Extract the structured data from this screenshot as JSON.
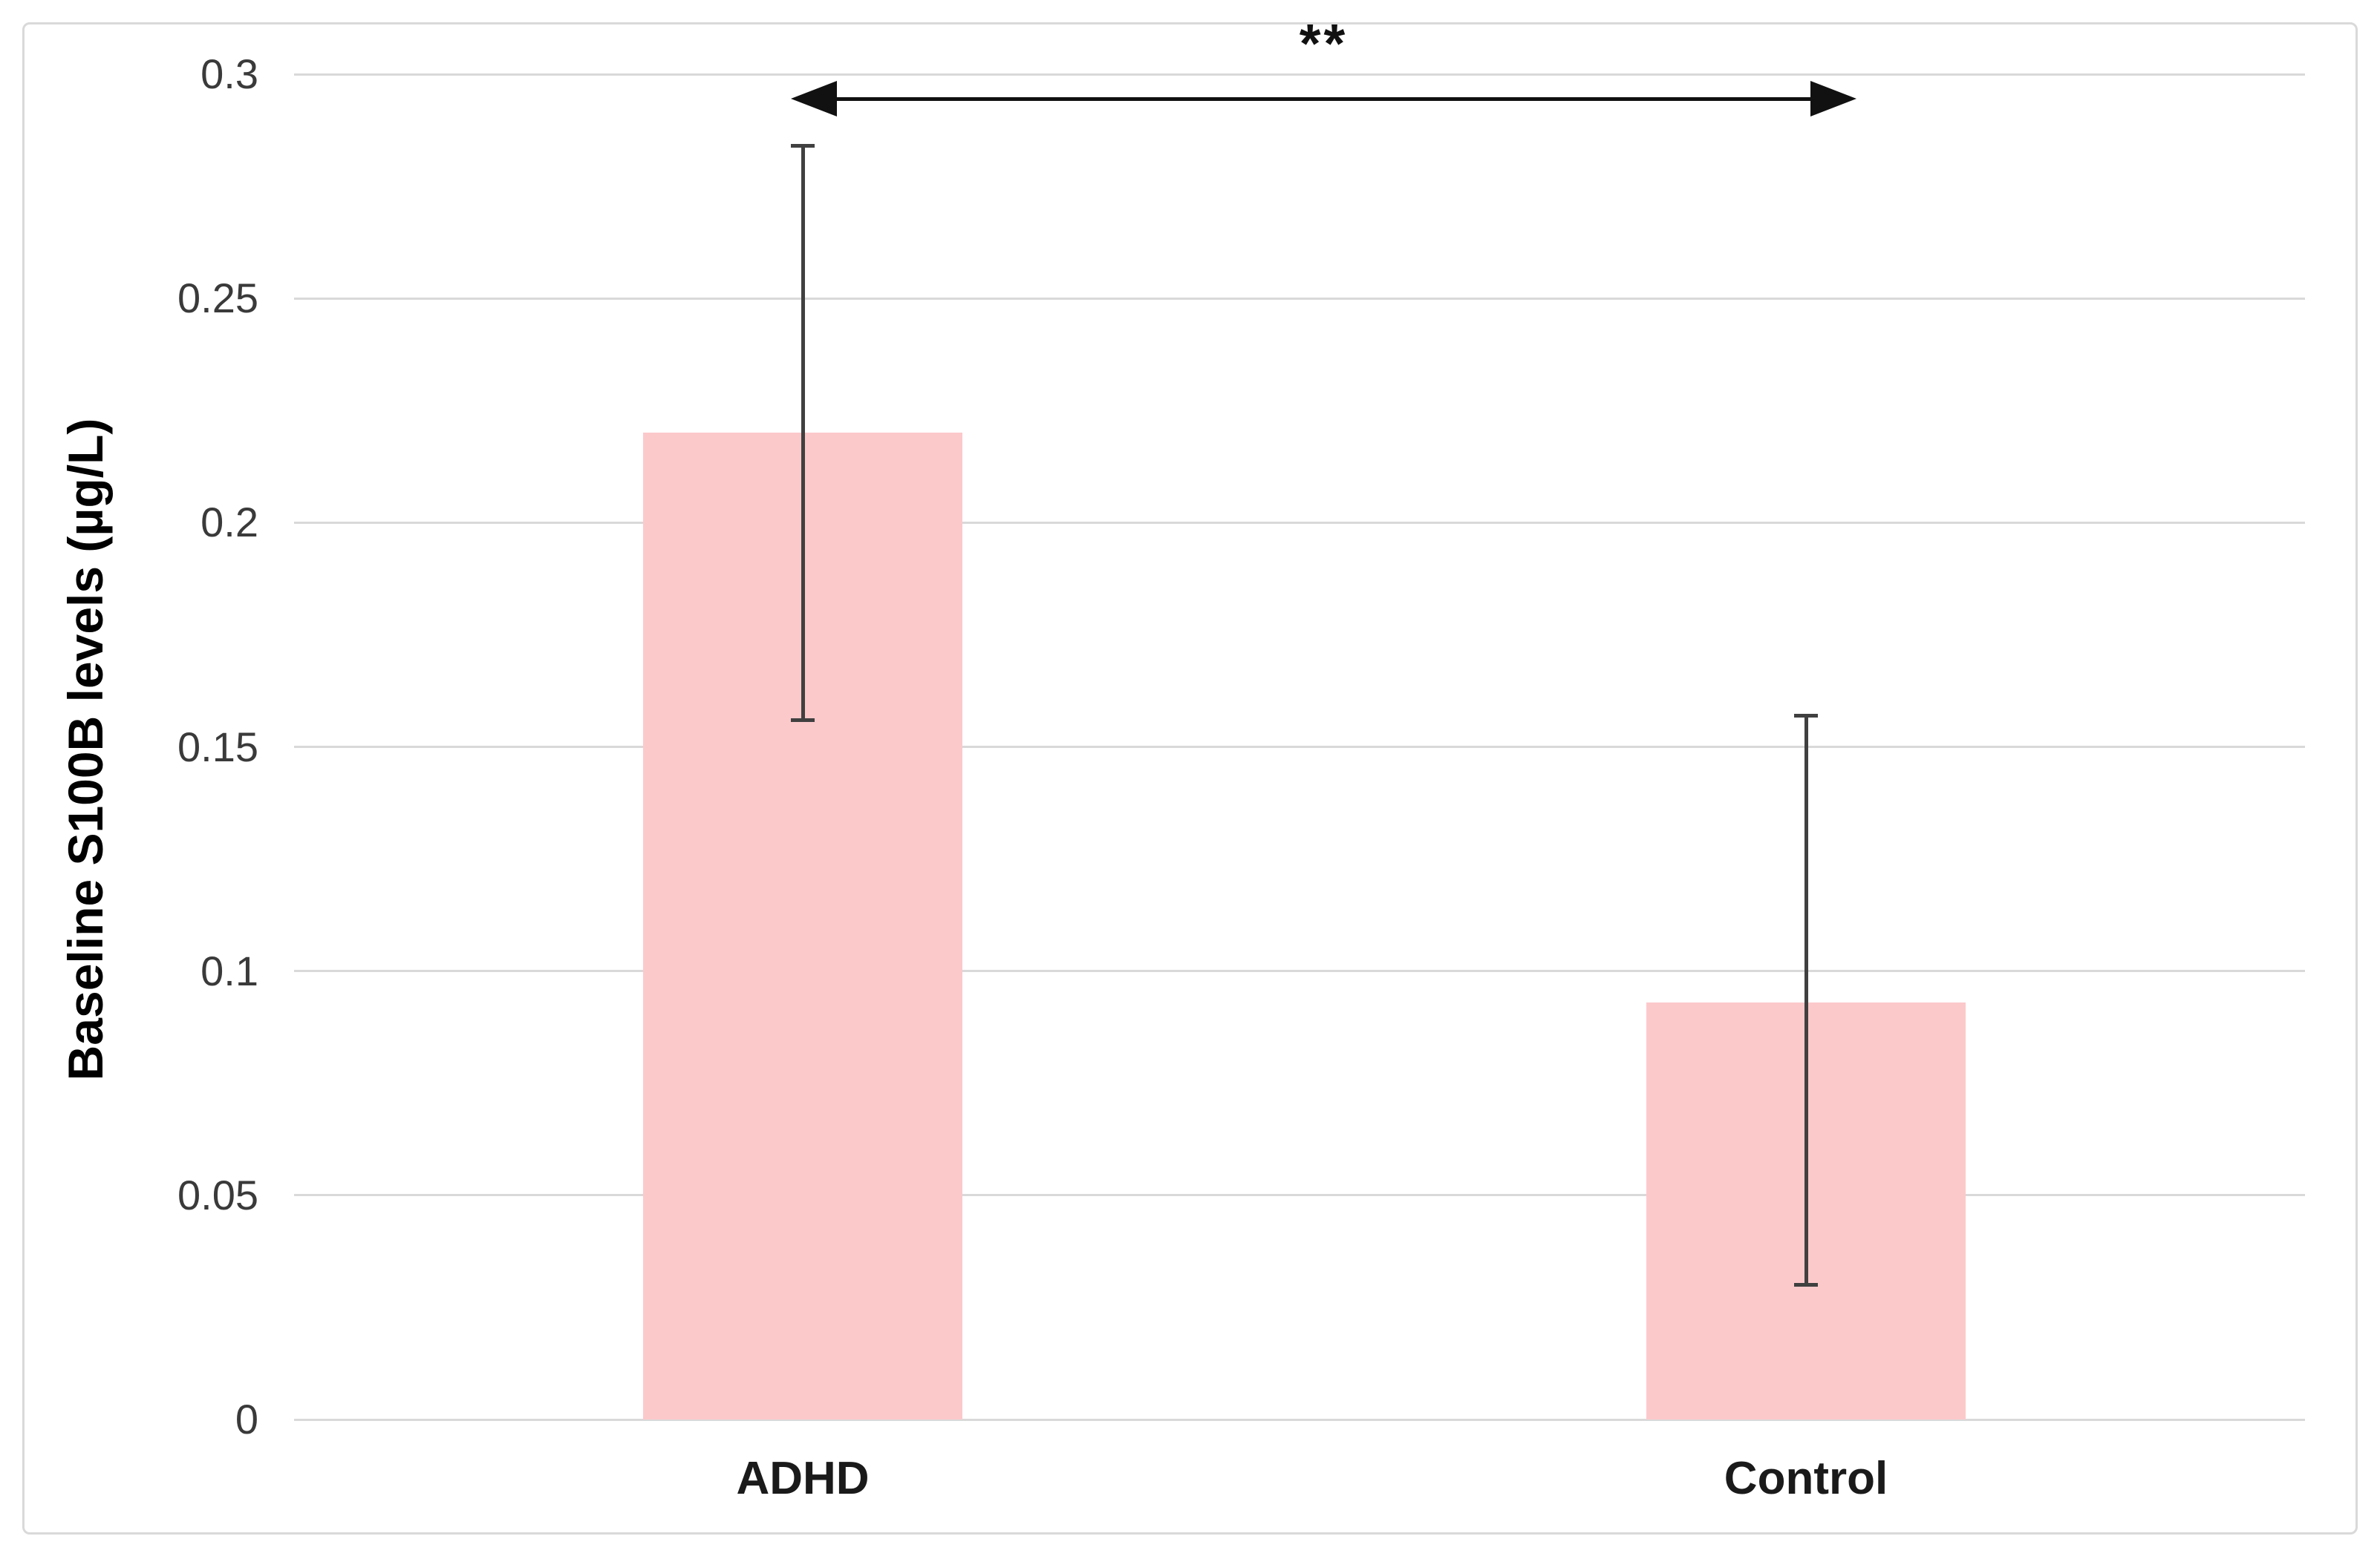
{
  "chart_data": {
    "type": "bar",
    "title": "",
    "xlabel": "",
    "ylabel": "Baseline S100B levels (µg/L)",
    "categories": [
      "ADHD",
      "Control"
    ],
    "values": [
      0.22,
      0.093
    ],
    "error_low": [
      0.156,
      0.03
    ],
    "error_high": [
      0.284,
      0.157
    ],
    "ytick_labels": [
      "0",
      "0.05",
      "0.1",
      "0.15",
      "0.2",
      "0.25",
      "0.3"
    ],
    "ytick_values": [
      0,
      0.05,
      0.1,
      0.15,
      0.2,
      0.25,
      0.3
    ],
    "ylim": [
      0,
      0.3
    ],
    "grid": true,
    "legend_position": "none",
    "significance": {
      "label": "**",
      "from": "ADHD",
      "to": "Control",
      "style": "double-headed-arrow"
    },
    "colors": {
      "bar_fill": "#FCC9CB",
      "gridline": "#D9D9D9",
      "chart_border": "#D9D9D9",
      "error_bar": "#404040",
      "arrow": "#111111",
      "tick_text": "#3A3A3A",
      "label_text": "#1A1A1A"
    }
  }
}
